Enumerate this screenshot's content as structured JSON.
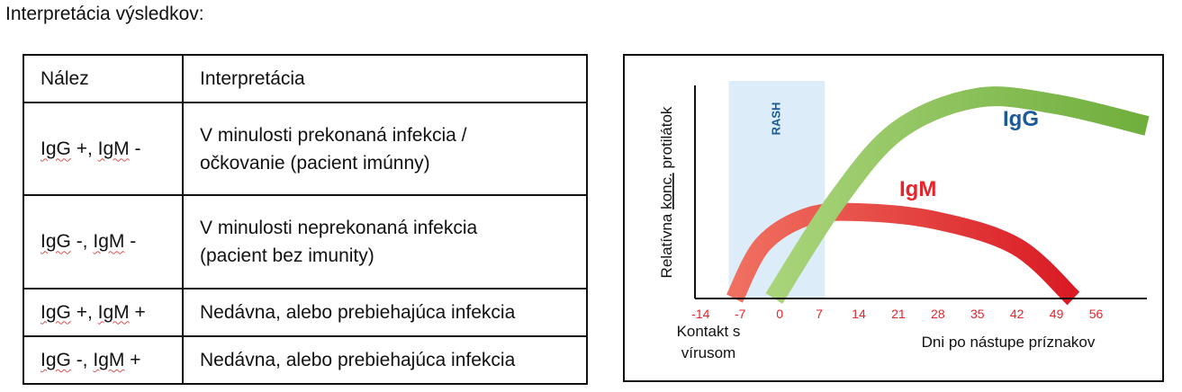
{
  "page": {
    "heading": "Interpretácia výsledkov:"
  },
  "table": {
    "headers": [
      "Nález",
      "Interpretácia"
    ],
    "rows": [
      {
        "igg": "IgG",
        "igg_sign": " +, ",
        "igm": "IgM",
        "igm_sign": " -",
        "interpretation_lines": [
          "V minulosti prekonaná infekcia /",
          "očkovanie (pacient imúnny)"
        ]
      },
      {
        "igg": "IgG",
        "igg_sign": " -, ",
        "igm": "IgM",
        "igm_sign": " -",
        "interpretation_lines": [
          "V minulosti neprekonaná infekcia",
          "(pacient bez imunity)"
        ]
      },
      {
        "igg": "IgG",
        "igg_sign": " +, ",
        "igm": "IgM",
        "igm_sign": " +",
        "interpretation_lines": [
          "Nedávna, alebo prebiehajúca infekcia"
        ]
      },
      {
        "igg": "IgG",
        "igg_sign": " -, ",
        "igm": "IgM",
        "igm_sign": " +",
        "interpretation_lines": [
          "Nedávna, alebo prebiehajúca infekcia"
        ]
      }
    ]
  },
  "chart_data": {
    "type": "area",
    "title": "",
    "ylabel_parts": [
      "Relatívna ",
      "konc.",
      " protilátok"
    ],
    "xlabel": "Dni po nástupe príznakov",
    "x_left_label_lines": [
      "Kontakt s",
      "vírusom"
    ],
    "x_ticks": [
      "-14",
      "-7",
      "0",
      "7",
      "14",
      "21",
      "28",
      "35",
      "42",
      "49",
      "56"
    ],
    "xlim": [
      -15,
      65
    ],
    "ylim": [
      0,
      1
    ],
    "rash": {
      "label": "RASH",
      "x_start": -9,
      "x_end": 8
    },
    "series": [
      {
        "name": "IgM",
        "color": "#e8232a",
        "points": [
          [
            -8,
            0
          ],
          [
            -3,
            0.25
          ],
          [
            5,
            0.38
          ],
          [
            14,
            0.4
          ],
          [
            28,
            0.36
          ],
          [
            42,
            0.24
          ],
          [
            52,
            0
          ]
        ]
      },
      {
        "name": "IgG",
        "color": "#7bb843",
        "points": [
          [
            -1,
            0
          ],
          [
            10,
            0.45
          ],
          [
            21,
            0.78
          ],
          [
            35,
            0.93
          ],
          [
            49,
            0.9
          ],
          [
            65,
            0.8
          ]
        ]
      }
    ],
    "colors": {
      "rash_band": "#dcedf9",
      "rash_text": "#1b5a96",
      "tick_text": "#e8232a",
      "igg_label": "#1b5a96",
      "igm_label": "#e8232a"
    }
  }
}
